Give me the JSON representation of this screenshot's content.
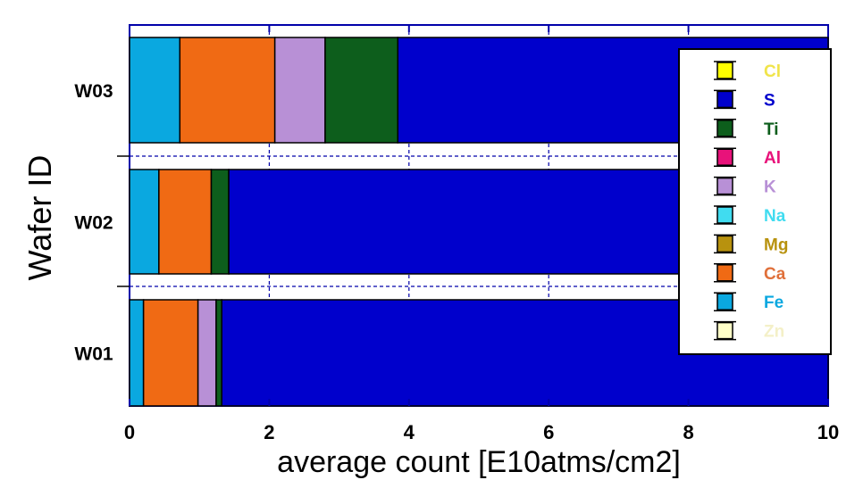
{
  "chart_data": {
    "type": "bar",
    "orientation": "horizontal",
    "stacked": true,
    "xlabel": "average count  [E10atms/cm2]",
    "ylabel": "Wafer ID",
    "xlim": [
      0,
      10
    ],
    "x_ticks": [
      "0",
      "2",
      "4",
      "6",
      "8",
      "10"
    ],
    "categories": [
      "W01",
      "W02",
      "W03"
    ],
    "grid": "dashed",
    "legend_position": "right",
    "series": [
      {
        "name": "Fe",
        "color": "#0aa8e0",
        "values": [
          0.2,
          0.42,
          0.72
        ]
      },
      {
        "name": "Ca",
        "color": "#f06a14",
        "values": [
          0.78,
          0.75,
          1.36
        ]
      },
      {
        "name": "K",
        "color": "#b890d6",
        "values": [
          0.26,
          0.0,
          0.72
        ]
      },
      {
        "name": "Ti",
        "color": "#0d5e1c",
        "values": [
          0.08,
          0.25,
          1.04
        ]
      },
      {
        "name": "S",
        "color": "#0000cc",
        "values": [
          8.68,
          8.58,
          6.16
        ]
      }
    ],
    "legend": [
      {
        "name": "Cl",
        "color": "#ffff00",
        "text_color": "#f0e44a"
      },
      {
        "name": "S",
        "color": "#0000cc",
        "text_color": "#0000cc"
      },
      {
        "name": "Ti",
        "color": "#0d5e1c",
        "text_color": "#0d5e1c"
      },
      {
        "name": "Al",
        "color": "#e8127a",
        "text_color": "#e8127a"
      },
      {
        "name": "K",
        "color": "#b890d6",
        "text_color": "#b890d6"
      },
      {
        "name": "Na",
        "color": "#40dcf0",
        "text_color": "#40dcf0"
      },
      {
        "name": "Mg",
        "color": "#b8920e",
        "text_color": "#b8920e"
      },
      {
        "name": "Ca",
        "color": "#f06a14",
        "text_color": "#e0703a"
      },
      {
        "name": "Fe",
        "color": "#0aa8e0",
        "text_color": "#0aa8e0"
      },
      {
        "name": "Zn",
        "color": "#ffffc8",
        "text_color": "#f4f0c8"
      }
    ]
  }
}
